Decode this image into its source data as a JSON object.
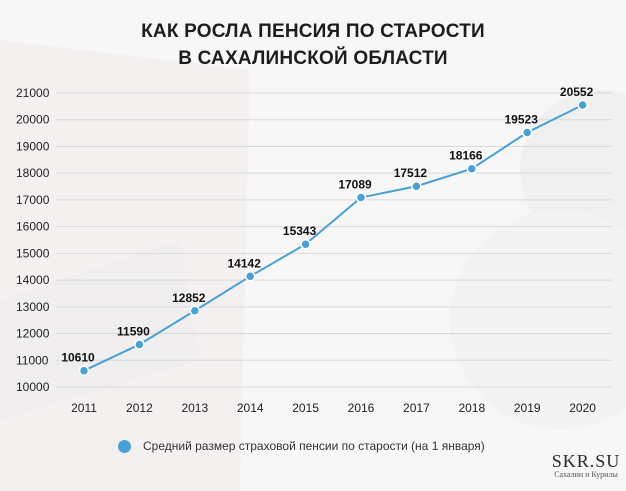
{
  "title": {
    "line1": "КАК РОСЛА ПЕНСИЯ ПО СТАРОСТИ",
    "line2": "В САХАЛИНСКОЙ ОБЛАСТИ"
  },
  "logo": {
    "main": "SKR.SU",
    "sub": "Сахалин и Курилы"
  },
  "colors": {
    "line": "#4a9fd4",
    "grid": "#d9d9d9",
    "text": "#222222"
  },
  "chart_data": {
    "type": "line",
    "title": "КАК РОСЛА ПЕНСИЯ ПО СТАРОСТИ В САХАЛИНСКОЙ ОБЛАСТИ",
    "x": [
      "2011",
      "2012",
      "2013",
      "2014",
      "2015",
      "2016",
      "2017",
      "2018",
      "2019",
      "2020"
    ],
    "series": [
      {
        "name": "Средний размер страховой пенсии по старости (на 1 января)",
        "values": [
          10610,
          11590,
          12852,
          14142,
          15343,
          17089,
          17512,
          18166,
          19523,
          20552
        ]
      }
    ],
    "yticks": [
      10000,
      11000,
      12000,
      13000,
      14000,
      15000,
      16000,
      17000,
      18000,
      19000,
      20000,
      21000
    ],
    "ylim": [
      10000,
      21000
    ],
    "grid": "horizontal",
    "legend_position": "bottom",
    "data_labels": true
  }
}
